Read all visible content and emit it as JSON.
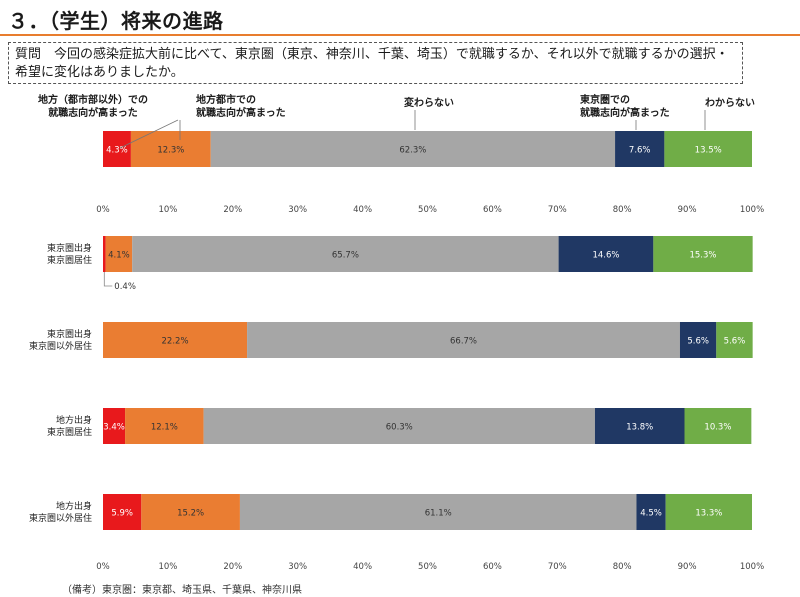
{
  "page": {
    "title": "３．（学生）将来の進路",
    "question": "質問　今回の感染症拡大前に比べて、東京圏（東京、神奈川、千葉、埼玉）で就職するか、それ以外で就職するかの選択・希望に変化はありましたか。",
    "footnote": "（備考）東京圏：東京都、埼玉県、千葉県、神奈川県"
  },
  "colors": {
    "accent": "#e87d2e",
    "series": [
      "#e8191c",
      "#ea7d32",
      "#a6a6a6",
      "#203864",
      "#70ad47"
    ]
  },
  "chart_data": {
    "type": "bar",
    "orientation": "horizontal",
    "stacked": true,
    "xlim": [
      0,
      100
    ],
    "x_ticks": [
      "0%",
      "10%",
      "20%",
      "30%",
      "40%",
      "50%",
      "60%",
      "70%",
      "80%",
      "90%",
      "100%"
    ],
    "series_labels": [
      "地方（都市部以外）での就職志向が高まった",
      "地方都市での就職志向が高まった",
      "変わらない",
      "東京圏での就職志向が高まった",
      "わからない"
    ],
    "categories": [
      "",
      "東京圏出身\n東京圏居住",
      "東京圏出身\n東京圏以外居住",
      "地方出身\n東京圏居住",
      "地方出身\n東京圏以外居住"
    ],
    "values": [
      [
        4.3,
        12.3,
        62.3,
        7.6,
        13.5
      ],
      [
        0.4,
        4.1,
        65.7,
        14.6,
        15.3
      ],
      [
        0.0,
        22.2,
        66.7,
        5.6,
        5.6
      ],
      [
        3.4,
        12.1,
        60.3,
        13.8,
        10.3
      ],
      [
        5.9,
        15.2,
        61.1,
        4.5,
        13.3
      ]
    ],
    "callouts": [
      {
        "row": 1,
        "segment": 0,
        "text": "0.4%"
      }
    ]
  }
}
